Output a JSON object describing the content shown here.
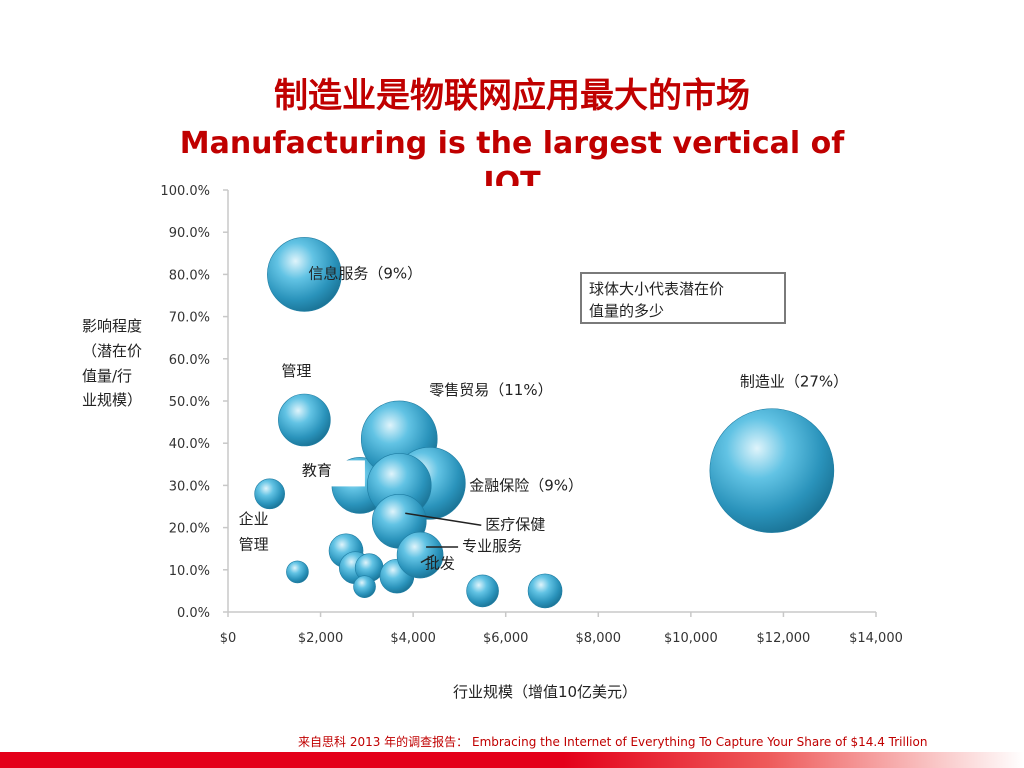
{
  "slide": {
    "title_zh": "制造业是物联网应用最大的市场",
    "title_en": "Manufacturing is the largest vertical of IOT",
    "source": "来自思科 2013 年的调查报告： Embracing the Internet of Everything  To Capture Your Share of $14.4 Trillion",
    "legend_note_lines": [
      "球体大小代表潜在价",
      "值量的多少"
    ]
  },
  "chart_data": {
    "type": "scatter",
    "title": "",
    "xlabel": "行业规模（增值10亿美元）",
    "ylabel_lines": [
      "影响程度",
      "（潜在价",
      "值量/行",
      "业规模）"
    ],
    "xlim": [
      0,
      14000
    ],
    "ylim": [
      0,
      1.0
    ],
    "x_ticks": [
      "$0",
      "$2,000",
      "$4,000",
      "$6,000",
      "$8,000",
      "$10,000",
      "$12,000",
      "$14,000"
    ],
    "y_ticks": [
      "0.0%",
      "10.0%",
      "20.0%",
      "30.0%",
      "40.0%",
      "50.0%",
      "60.0%",
      "70.0%",
      "80.0%",
      "90.0%",
      "100.0%"
    ],
    "grid": false,
    "bubble_color": "#3aa9d0",
    "points": [
      {
        "label": "信息服务（9%）",
        "x": 1650,
        "y": 0.8,
        "size": 37
      },
      {
        "label": "管理",
        "x": 1650,
        "y": 0.455,
        "size": 26
      },
      {
        "label": "",
        "x": 900,
        "y": 0.28,
        "size": 15
      },
      {
        "label": "",
        "x": 1500,
        "y": 0.095,
        "size": 11
      },
      {
        "label": "",
        "x": 2550,
        "y": 0.145,
        "size": 17
      },
      {
        "label": "",
        "x": 2750,
        "y": 0.105,
        "size": 16
      },
      {
        "label": "",
        "x": 3050,
        "y": 0.105,
        "size": 14
      },
      {
        "label": "",
        "x": 2950,
        "y": 0.06,
        "size": 11
      },
      {
        "label": "",
        "x": 3650,
        "y": 0.085,
        "size": 17
      },
      {
        "label": "教育",
        "x": 2850,
        "y": 0.3,
        "size": 28
      },
      {
        "label": "零售贸易（11%）",
        "x": 3700,
        "y": 0.41,
        "size": 38
      },
      {
        "label": "",
        "x": 4350,
        "y": 0.305,
        "size": 36
      },
      {
        "label": "金融保险（9%）",
        "x": 3700,
        "y": 0.3,
        "size": 32
      },
      {
        "label": "医疗保健",
        "x": 3700,
        "y": 0.215,
        "size": 27
      },
      {
        "label": "专业服务",
        "x": 4150,
        "y": 0.135,
        "size": 23
      },
      {
        "label": "",
        "x": 5500,
        "y": 0.05,
        "size": 16
      },
      {
        "label": "",
        "x": 6850,
        "y": 0.05,
        "size": 17
      },
      {
        "label": "制造业（27%）",
        "x": 11750,
        "y": 0.335,
        "size": 62
      }
    ],
    "annotations": [
      {
        "label": "企业",
        "x": 100,
        "y": 0.22
      },
      {
        "label": "管理",
        "x": 100,
        "y": 0.16
      },
      {
        "label": "批发",
        "x": 5550,
        "y": 0.115
      }
    ]
  }
}
